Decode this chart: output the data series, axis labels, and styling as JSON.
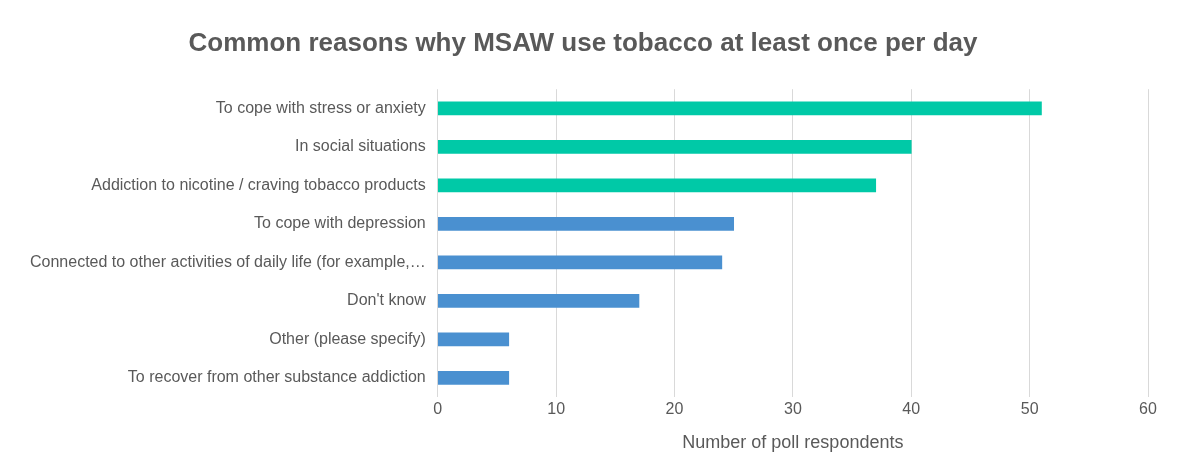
{
  "chart_data": {
    "type": "bar",
    "orientation": "horizontal",
    "title": "Common reasons why MSAW use tobacco at least once per day",
    "xlabel": "Number of poll respondents",
    "categories": [
      "To cope with stress or anxiety",
      "In social situations",
      "Addiction to nicotine / craving tobacco products",
      "To cope with depression",
      "Connected to other activities of daily life (for example,…",
      "Don't know",
      "Other (please specify)",
      "To recover from other substance addiction"
    ],
    "values": [
      51,
      40,
      37,
      25,
      24,
      17,
      6,
      6
    ],
    "colors": [
      "#00c9a7",
      "#00c9a7",
      "#00c9a7",
      "#4a90d0",
      "#4a90d0",
      "#4a90d0",
      "#4a90d0",
      "#4a90d0"
    ],
    "xlim": [
      0,
      60
    ],
    "xticks": [
      0,
      10,
      20,
      30,
      40,
      50,
      60
    ],
    "grid": "x",
    "legend": false
  }
}
